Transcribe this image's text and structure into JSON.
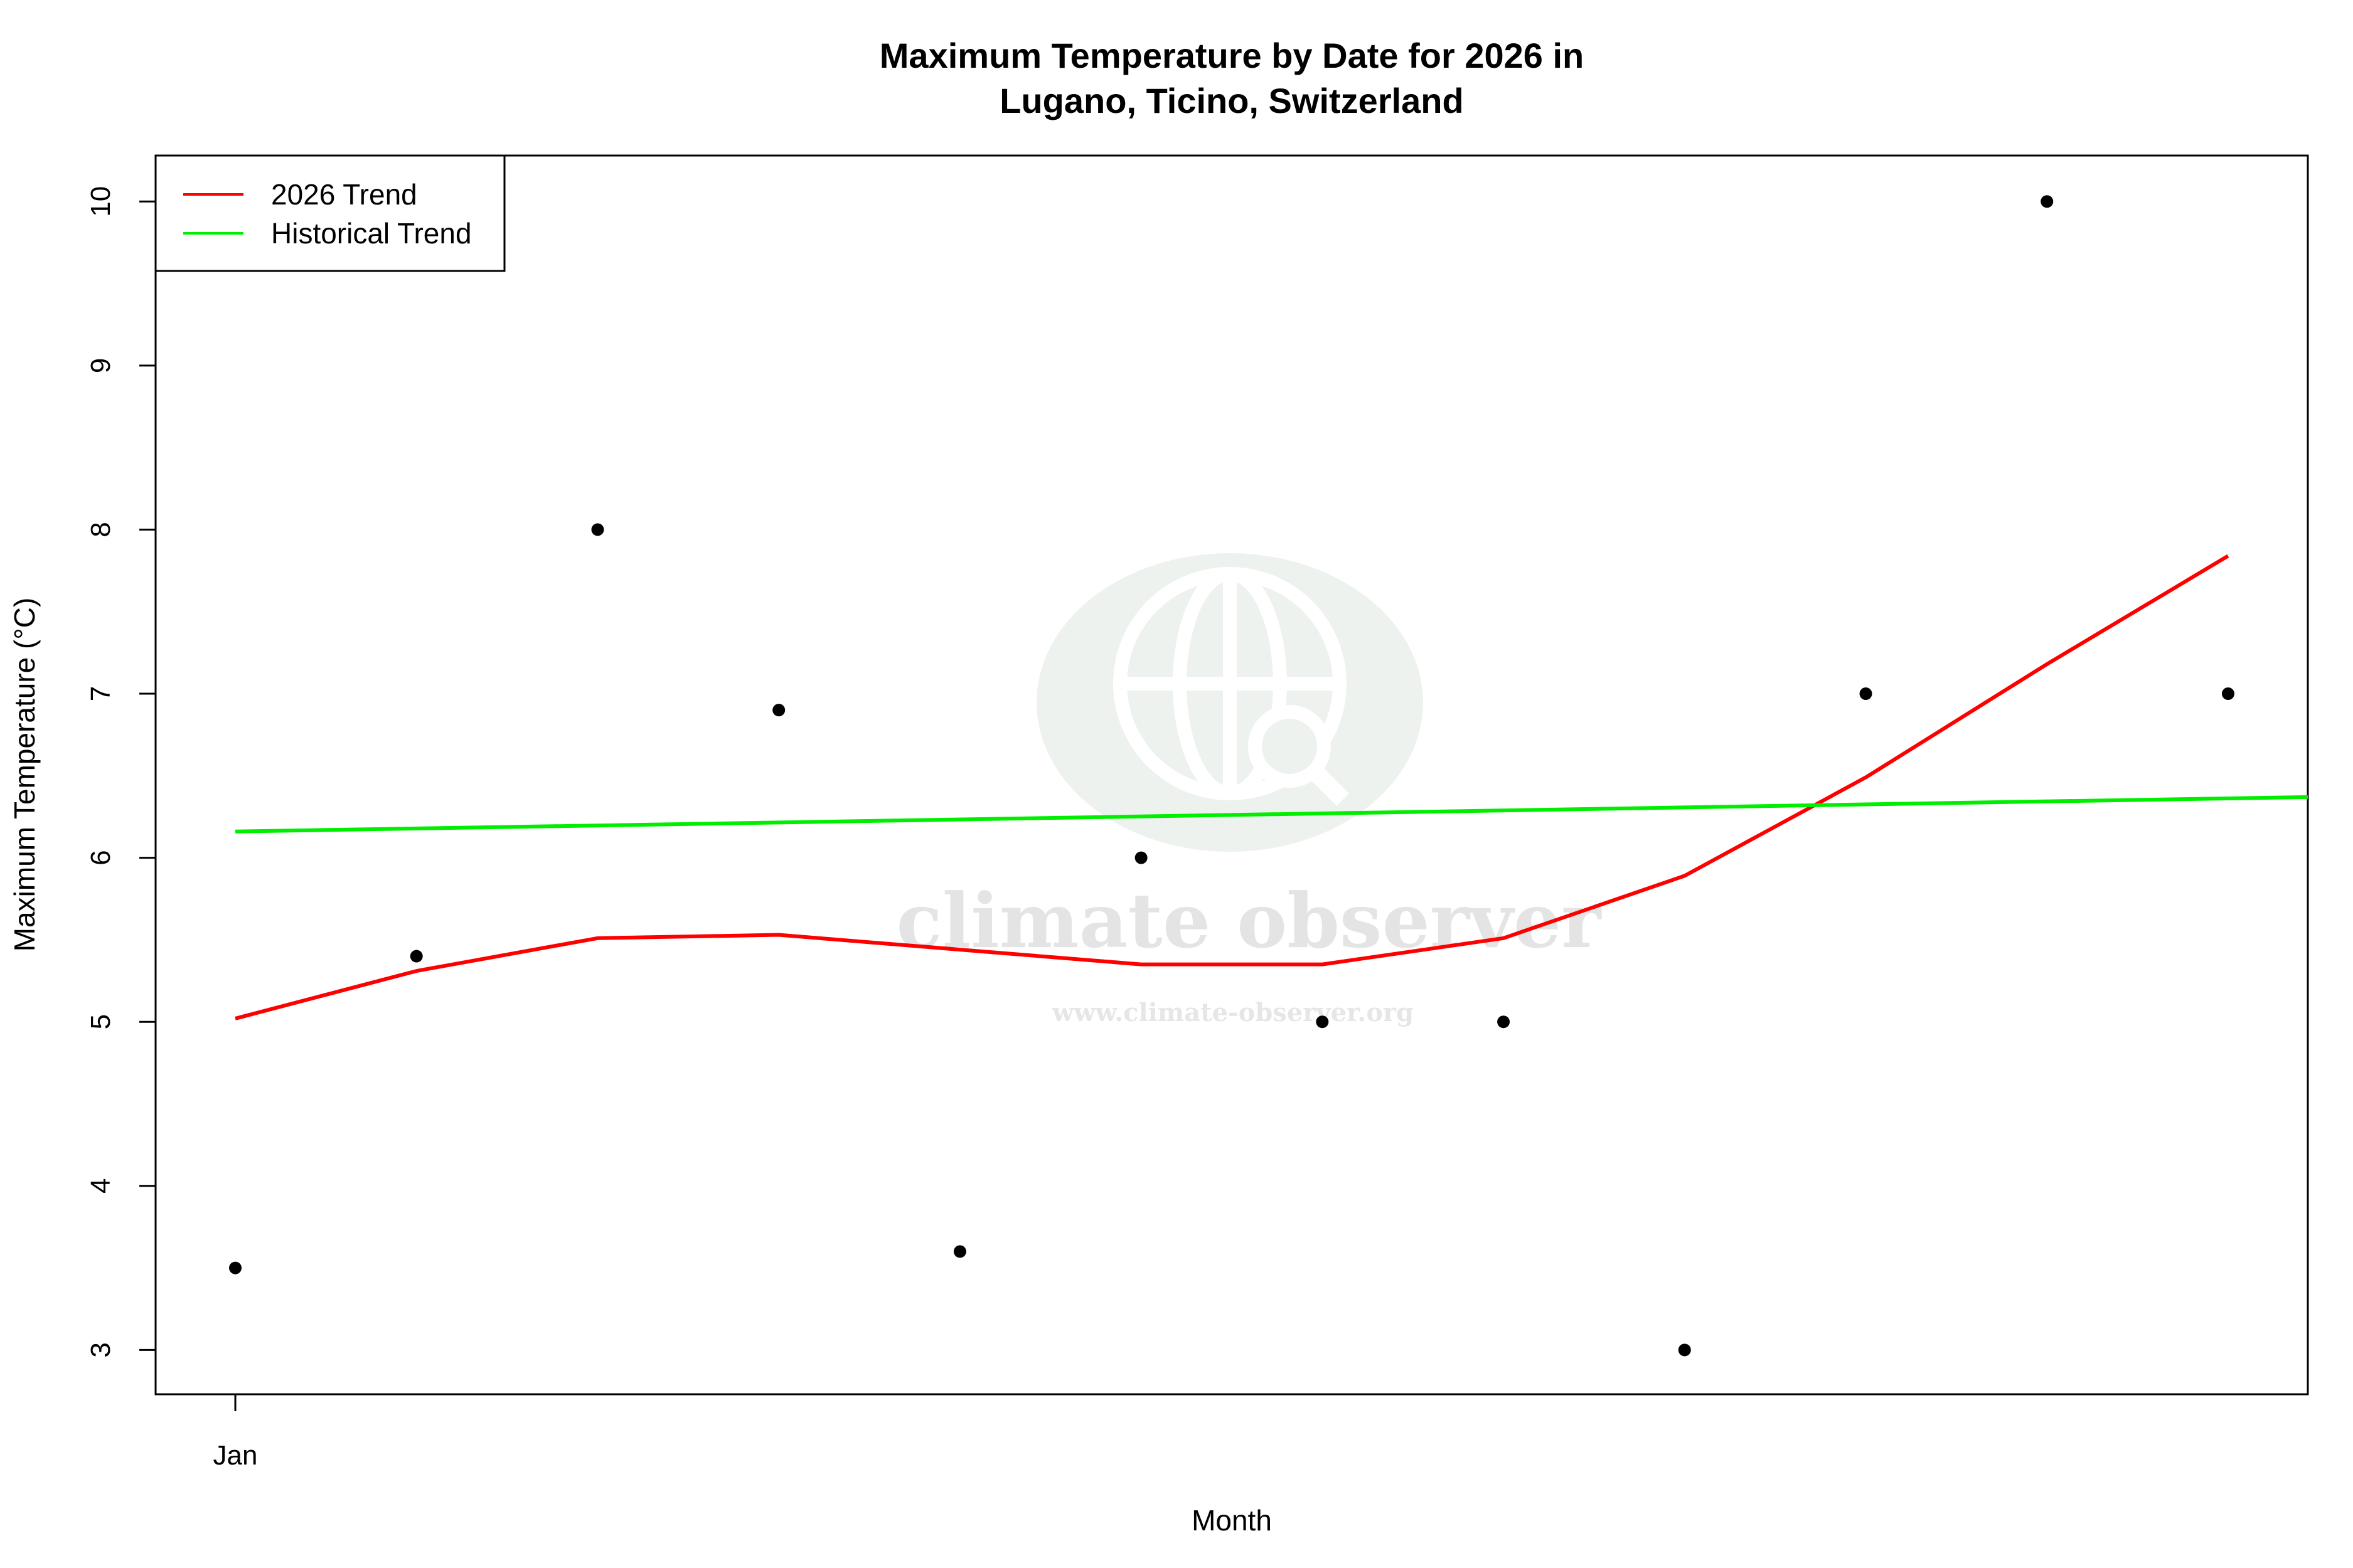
{
  "chart_data": {
    "type": "scatter",
    "title_line1": "Maximum Temperature by Date for 2026 in",
    "title_line2": "Lugano, Ticino, Switzerland",
    "xlabel": "Month",
    "ylabel": "Maximum Temperature (°C)",
    "x_tick_labels": [
      "Jan"
    ],
    "y_ticks": [
      3,
      4,
      5,
      6,
      7,
      8,
      9,
      10
    ],
    "ylim": [
      2.73,
      10.28
    ],
    "xlim": [
      0.56,
      12.44
    ],
    "grid": false,
    "legend_position": "top-left",
    "points": {
      "x": [
        1,
        2,
        3,
        4,
        5,
        6,
        7,
        8,
        9,
        10,
        11,
        12
      ],
      "y": [
        3.5,
        5.4,
        8.0,
        6.9,
        3.6,
        6.0,
        5.0,
        5.0,
        3.0,
        7.0,
        10.0,
        7.0
      ],
      "color": "#000000"
    },
    "series": [
      {
        "name": "2026 Trend",
        "color": "#ff0000",
        "x": [
          1,
          2,
          3,
          4,
          5,
          6,
          7,
          8,
          9,
          10,
          11,
          12
        ],
        "y": [
          5.02,
          5.31,
          5.51,
          5.53,
          5.44,
          5.35,
          5.35,
          5.51,
          5.89,
          6.49,
          7.18,
          7.84
        ]
      },
      {
        "name": "Historical Trend",
        "color": "#00ee00",
        "x": [
          1,
          12.44
        ],
        "y": [
          6.16,
          6.37
        ]
      }
    ]
  },
  "watermark": {
    "brand": "climate observer",
    "url": "www.climate-observer.org",
    "icon": "globe-search-icon"
  }
}
